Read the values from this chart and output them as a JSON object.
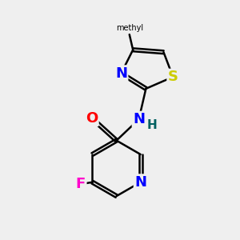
{
  "bg_color": "#efefef",
  "bond_color": "#000000",
  "bond_width": 1.8,
  "atom_colors": {
    "N": "#0000ff",
    "S": "#cccc00",
    "F": "#ff00cc",
    "O": "#ff0000",
    "H": "#006060",
    "C": "#000000"
  },
  "font_size": 13,
  "font_size_small": 11
}
